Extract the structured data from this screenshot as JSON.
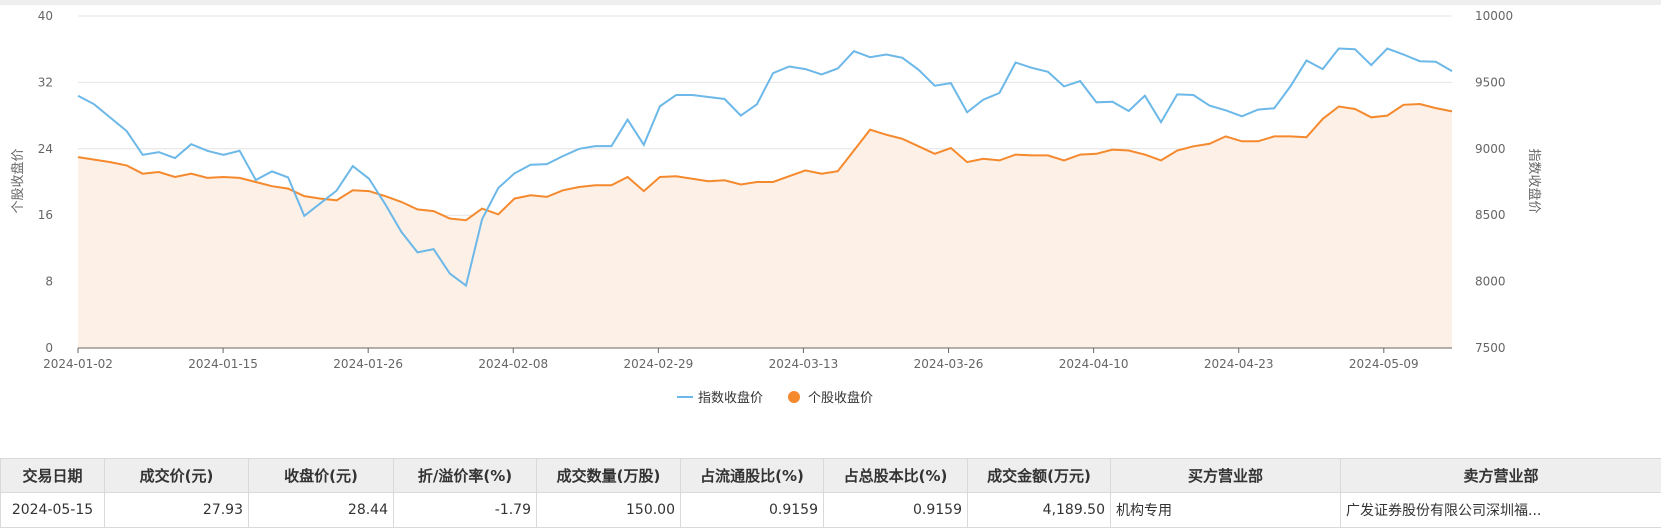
{
  "chart_data": {
    "type": "line",
    "left_axis_label": "个股收盘价",
    "right_axis_label": "指数收盘价",
    "left_ylim": [
      0,
      40
    ],
    "left_ticks": [
      "0",
      "8",
      "16",
      "24",
      "32",
      "40"
    ],
    "right_ylim": [
      7500,
      10000
    ],
    "right_ticks": [
      "7500",
      "8000",
      "8500",
      "9000",
      "9500",
      "10000"
    ],
    "x_tick_labels": [
      "2024-01-02",
      "2024-01-15",
      "2024-01-26",
      "2024-02-08",
      "2024-02-29",
      "2024-03-13",
      "2024-03-26",
      "2024-04-10",
      "2024-04-23",
      "2024-05-09"
    ],
    "grid": true,
    "legend_position": "bottom",
    "colors": {
      "index": "#6cb8e8",
      "stock": "#f5892d",
      "stock_fill": "#fdf0e6"
    },
    "series": [
      {
        "name": "指数收盘价",
        "axis": "right",
        "values": [
          9400,
          9335,
          9235,
          9135,
          8955,
          8975,
          8930,
          9035,
          8985,
          8955,
          8985,
          8765,
          8830,
          8785,
          8495,
          8590,
          8685,
          8870,
          8775,
          8585,
          8375,
          8220,
          8245,
          8060,
          7970,
          8470,
          8705,
          8815,
          8880,
          8885,
          8945,
          9000,
          9020,
          9020,
          9220,
          9030,
          9320,
          9405,
          9405,
          9390,
          9375,
          9250,
          9335,
          9570,
          9620,
          9600,
          9560,
          9605,
          9735,
          9690,
          9710,
          9685,
          9595,
          9475,
          9495,
          9275,
          9370,
          9420,
          9650,
          9610,
          9580,
          9470,
          9510,
          9350,
          9355,
          9285,
          9400,
          9200,
          9410,
          9405,
          9325,
          9290,
          9245,
          9295,
          9305,
          9470,
          9665,
          9600,
          9755,
          9750,
          9630,
          9755,
          9710,
          9660,
          9655,
          9585
        ]
      },
      {
        "name": "个股收盘价",
        "axis": "left",
        "values": [
          23.0,
          22.7,
          22.4,
          22.0,
          21.0,
          21.2,
          20.6,
          21.0,
          20.5,
          20.6,
          20.5,
          20.0,
          19.5,
          19.2,
          18.3,
          18.0,
          17.8,
          19.0,
          18.9,
          18.3,
          17.6,
          16.7,
          16.5,
          15.6,
          15.4,
          16.8,
          16.1,
          18.0,
          18.4,
          18.2,
          19.0,
          19.4,
          19.6,
          19.6,
          20.6,
          18.9,
          20.6,
          20.7,
          20.4,
          20.1,
          20.2,
          19.7,
          20.0,
          20.0,
          20.7,
          21.4,
          21.0,
          21.3,
          23.8,
          26.3,
          25.7,
          25.2,
          24.3,
          23.4,
          24.1,
          22.4,
          22.8,
          22.6,
          23.3,
          23.2,
          23.2,
          22.6,
          23.3,
          23.4,
          23.9,
          23.8,
          23.3,
          22.6,
          23.8,
          24.3,
          24.6,
          25.5,
          24.9,
          24.9,
          25.5,
          25.5,
          25.4,
          27.6,
          29.1,
          28.8,
          27.8,
          28.0,
          29.3,
          29.4,
          28.9,
          28.5
        ]
      }
    ]
  },
  "table": {
    "headers": [
      "交易日期",
      "成交价(元)",
      "收盘价(元)",
      "折/溢价率(%)",
      "成交数量(万股)",
      "占流通股比(%)",
      "占总股本比(%)",
      "成交金额(万元)",
      "买方营业部",
      "卖方营业部"
    ],
    "rows": [
      [
        "2024-05-15",
        "27.93",
        "28.44",
        "-1.79",
        "150.00",
        "0.9159",
        "0.9159",
        "4,189.50",
        "机构专用",
        "广发证券股份有限公司深圳福..."
      ]
    ]
  }
}
